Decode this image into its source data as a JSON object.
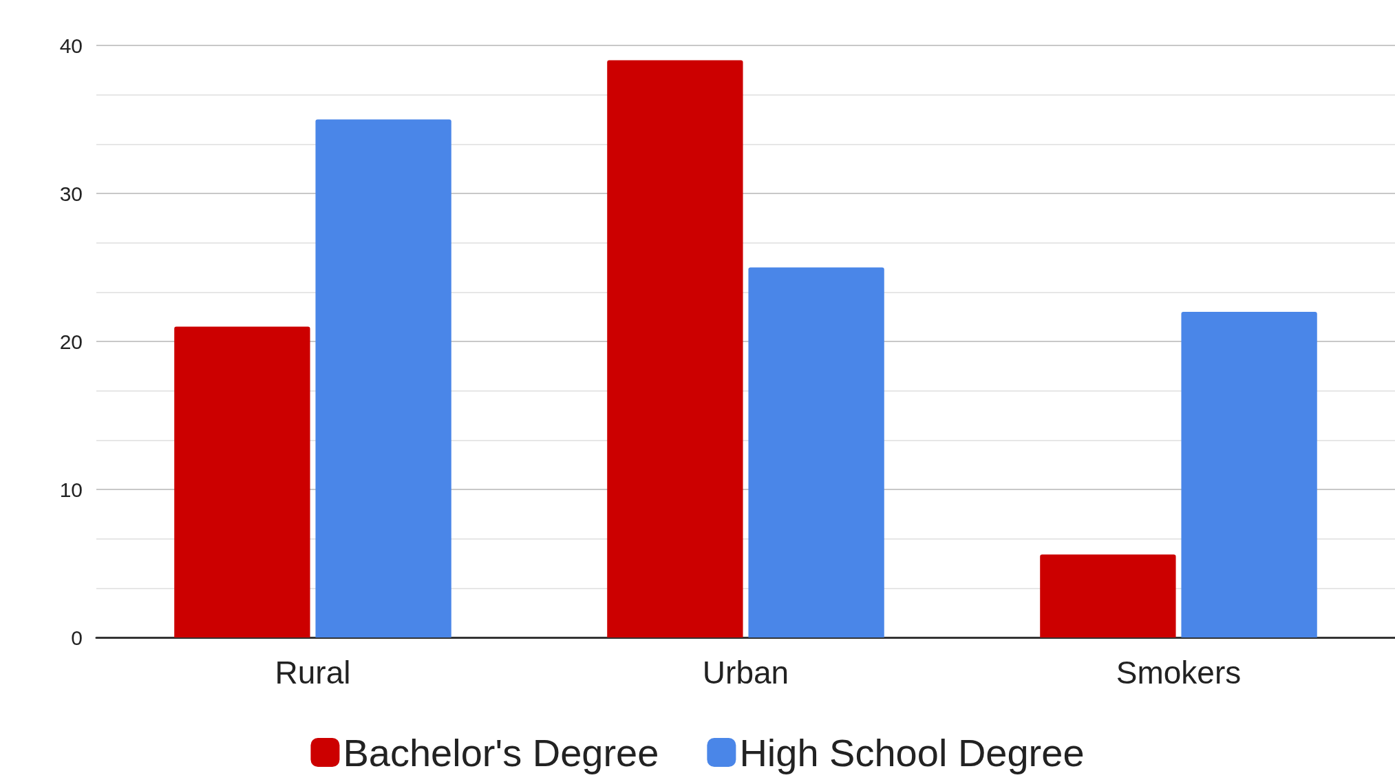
{
  "chart_data": {
    "type": "bar",
    "categories": [
      "Rural",
      "Urban",
      "Smokers"
    ],
    "series": [
      {
        "name": "Bachelor's Degree",
        "color": "#cc0000",
        "values": [
          21,
          39,
          5.6
        ]
      },
      {
        "name": "High School Degree",
        "color": "#4a86e8",
        "values": [
          35,
          25,
          22
        ]
      }
    ],
    "ylim": [
      0,
      40
    ],
    "yticks": [
      0,
      10,
      20,
      30,
      40
    ],
    "grid": "y",
    "legend": "bottom"
  }
}
